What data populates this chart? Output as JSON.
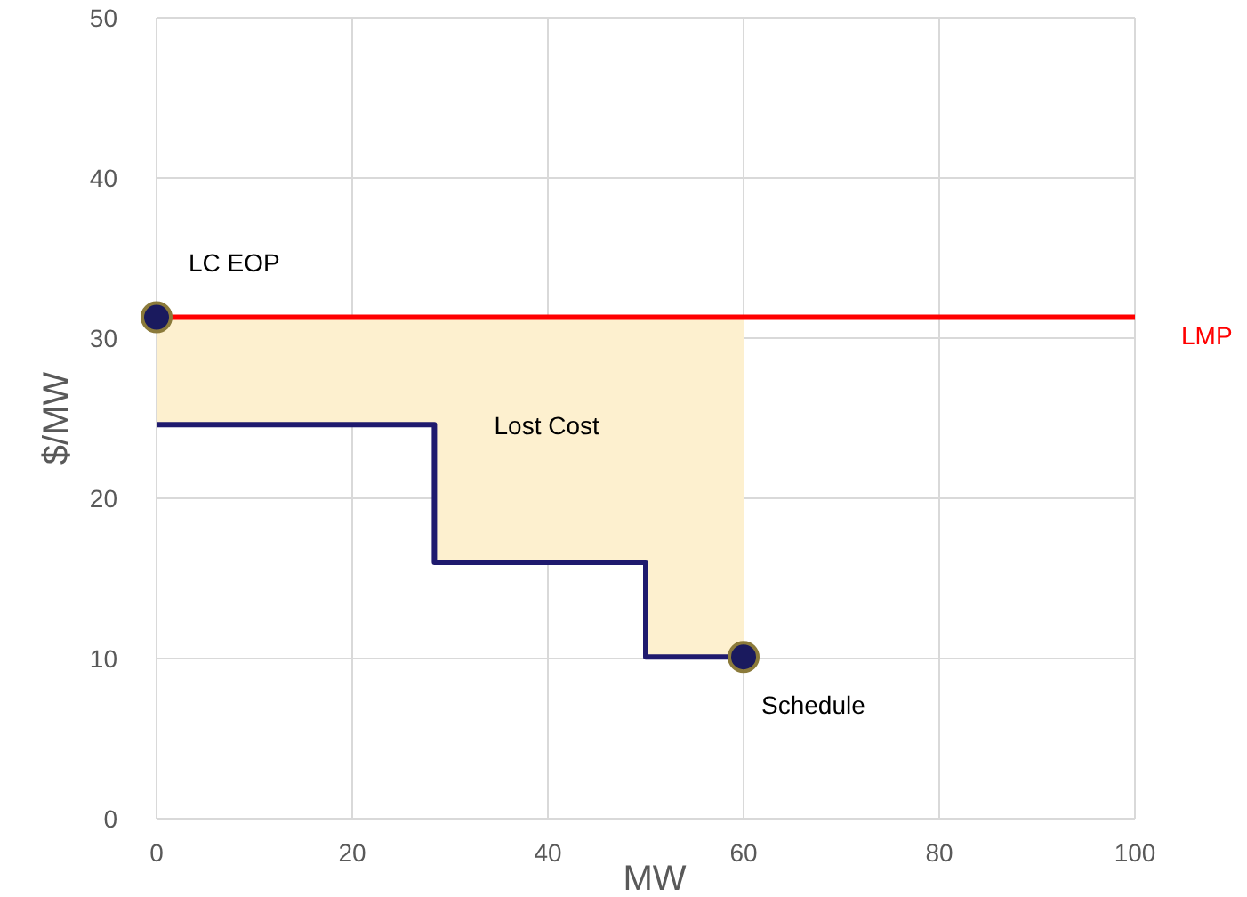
{
  "chart_data": {
    "type": "line",
    "xlabel": "MW",
    "ylabel": "$/MW",
    "xlim": [
      0,
      100
    ],
    "ylim": [
      0,
      50
    ],
    "xticks": [
      0,
      20,
      40,
      60,
      80,
      100
    ],
    "yticks": [
      0,
      10,
      20,
      30,
      40,
      50
    ],
    "grid": true,
    "series": [
      {
        "color": "#1f1a6e",
        "x": [
          0,
          28.4,
          28.4,
          50,
          50,
          60
        ],
        "values": [
          24.6,
          24.6,
          16,
          16,
          10.1,
          10.1
        ],
        "lower": [
          24.6,
          24.6,
          16,
          16,
          10.1,
          10.1
        ],
        "upper": [
          31.3,
          31.3,
          31.3,
          31.3,
          31.3,
          31.3
        ]
      },
      {
        "type": "scatter",
        "color": "#1a1a5e",
        "marker": "circle",
        "x": [
          0,
          60
        ],
        "values": [
          31.3,
          10.1
        ]
      }
    ],
    "ref_lines": [
      {
        "axis": "y",
        "value": 31.3,
        "label": "LMP",
        "color": "#ff0000"
      }
    ],
    "annotations": [
      {
        "text": "LC  EOP",
        "x": 0,
        "y": 31.3
      },
      "Lost Cost",
      {
        "text": "Schedule",
        "x": 60,
        "y": 10.1
      }
    ]
  }
}
